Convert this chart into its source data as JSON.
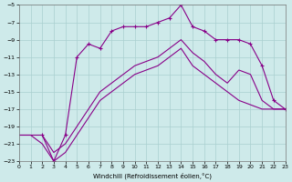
{
  "xlabel": "Windchill (Refroidissement éolien,°C)",
  "xlim": [
    0,
    23
  ],
  "ylim": [
    -23,
    -5
  ],
  "xticks": [
    0,
    1,
    2,
    3,
    4,
    5,
    6,
    7,
    8,
    9,
    10,
    11,
    12,
    13,
    14,
    15,
    16,
    17,
    18,
    19,
    20,
    21,
    22,
    23
  ],
  "yticks": [
    -5,
    -7,
    -9,
    -11,
    -13,
    -15,
    -17,
    -19,
    -21,
    -23
  ],
  "bg_color": "#ceeaea",
  "grid_color": "#aacfcf",
  "line_color": "#880088",
  "line1_x": [
    0,
    1,
    2,
    3,
    4,
    5,
    6,
    7,
    8,
    9,
    10,
    11,
    12,
    13,
    14,
    15,
    16,
    17,
    18,
    19,
    20,
    21,
    22,
    23
  ],
  "line1_y": [
    -20,
    -20,
    -21,
    -23,
    -22,
    -20,
    -18,
    -16,
    -15,
    -14,
    -13,
    -12.5,
    -12,
    -11,
    -10,
    -12,
    -13,
    -14,
    -15,
    -16,
    -16.5,
    -17,
    -17,
    -17
  ],
  "line2_x": [
    2,
    3,
    4,
    5,
    6,
    7,
    8,
    9,
    10,
    11,
    12,
    13,
    14,
    15,
    16,
    17,
    18,
    19,
    20,
    21,
    22,
    23
  ],
  "line2_y": [
    -20,
    -23,
    -20,
    -11,
    -9.5,
    -10,
    -8,
    -7.5,
    -7.5,
    -7.5,
    -7,
    -6.5,
    -5,
    -7.5,
    -8,
    -9,
    -9,
    -9,
    -9.5,
    -12,
    -16,
    -17
  ],
  "line3_x": [
    0,
    1,
    2,
    3,
    4,
    5,
    6,
    7,
    8,
    9,
    10,
    11,
    12,
    13,
    14,
    15,
    16,
    17,
    18,
    19,
    20,
    21,
    22,
    23
  ],
  "line3_y": [
    -20,
    -20,
    -20,
    -22,
    -21,
    -19,
    -17,
    -15,
    -14,
    -13,
    -12,
    -11.5,
    -11,
    -10,
    -9,
    -10.5,
    -11.5,
    -13,
    -14,
    -12.5,
    -13,
    -16,
    -17,
    -17
  ]
}
